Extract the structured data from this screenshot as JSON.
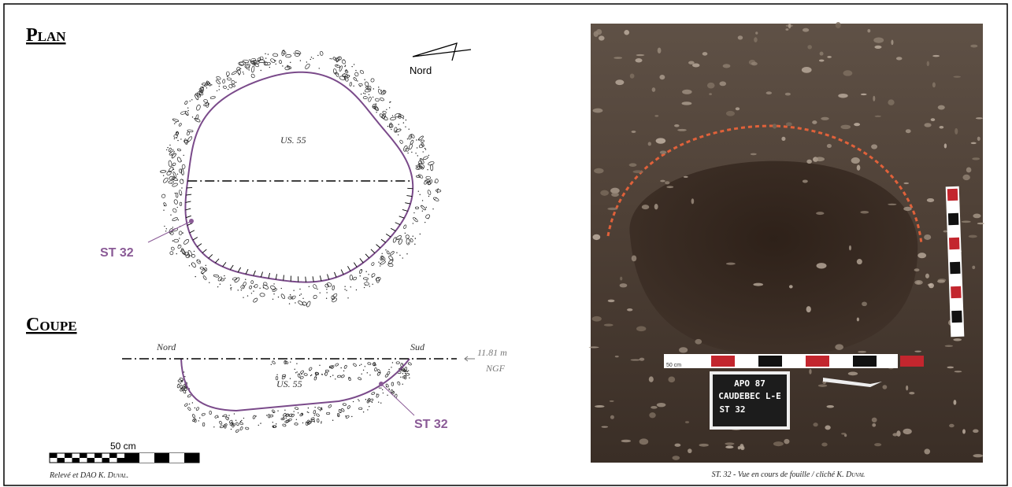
{
  "plan": {
    "title": "Plan",
    "north": "Nord",
    "fill_label": "US. 55",
    "feature_label": "ST 32"
  },
  "coupe": {
    "title": "Coupe",
    "left": "Nord",
    "right": "Sud",
    "altitude": "11.81 m",
    "datum": "NGF",
    "fill_label": "US. 55",
    "feature_label": "ST 32"
  },
  "scale": "50 cm",
  "credit": {
    "text": "Relevé et DAO K.",
    "name": "Duval."
  },
  "photo": {
    "scale": "50 cm",
    "board": [
      "APO 87",
      "CAUDEBEC L-E",
      "ST 32"
    ],
    "caption": {
      "text": "ST. 32 - Vue en cours de fouille / cliché K.",
      "name": "Duval"
    }
  }
}
